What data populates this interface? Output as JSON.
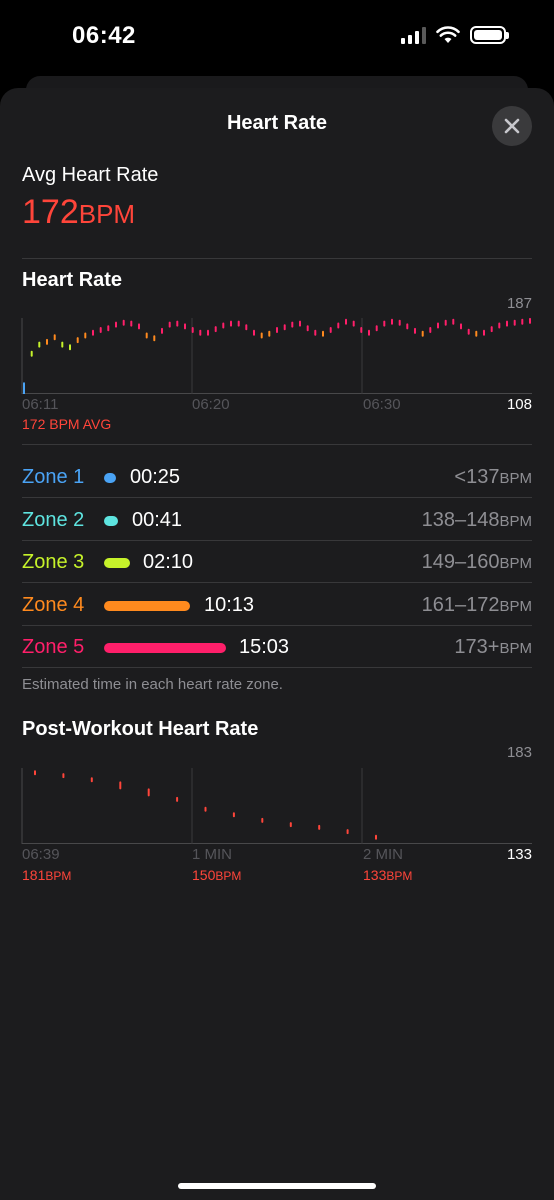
{
  "status": {
    "time": "06:42"
  },
  "sheet": {
    "title": "Heart Rate"
  },
  "avg": {
    "label": "Avg Heart Rate",
    "value": "172",
    "unit": "BPM"
  },
  "heart_rate_chart": {
    "title": "Heart Rate",
    "y_max_label": "187",
    "y_min_label": "108",
    "x_labels": [
      "06:11",
      "06:20",
      "06:30"
    ],
    "avg_label": "172 BPM AVG"
  },
  "zones": [
    {
      "name": "Zone 1",
      "time": "00:25",
      "range": "<137",
      "unit": "BPM",
      "color": "#4aa3f5"
    },
    {
      "name": "Zone 2",
      "time": "00:41",
      "range": "138–148",
      "unit": "BPM",
      "color": "#5ee4e0"
    },
    {
      "name": "Zone 3",
      "time": "02:10",
      "range": "149–160",
      "unit": "BPM",
      "color": "#c6f22a"
    },
    {
      "name": "Zone 4",
      "time": "10:13",
      "range": "161–172",
      "unit": "BPM",
      "color": "#ff8a1e"
    },
    {
      "name": "Zone 5",
      "time": "15:03",
      "range": "173+",
      "unit": "BPM",
      "color": "#ff1f6a"
    }
  ],
  "zones_note": "Estimated time in each heart rate zone.",
  "post_workout_chart": {
    "title": "Post-Workout Heart Rate",
    "y_max_label": "183",
    "y_min_label": "133",
    "x_labels": [
      "06:39",
      "1 MIN",
      "2 MIN"
    ],
    "readings": [
      {
        "value": "181",
        "unit": "BPM"
      },
      {
        "value": "150",
        "unit": "BPM"
      },
      {
        "value": "133",
        "unit": "BPM"
      }
    ]
  },
  "chart_data": [
    {
      "type": "line",
      "title": "Heart Rate",
      "ylim": [
        108,
        187
      ],
      "x_ticks": [
        "06:11",
        "06:20",
        "06:30"
      ],
      "series": [
        {
          "values": [
            111,
            150,
            160,
            163,
            168,
            160,
            157,
            165,
            170,
            173,
            176,
            178,
            182,
            184,
            183,
            180,
            170,
            167,
            175,
            182,
            183,
            180,
            176,
            173,
            173,
            177,
            181,
            183,
            183,
            179,
            173,
            170,
            172,
            176,
            179,
            182,
            183,
            178,
            173,
            172,
            176,
            181,
            185,
            183,
            176,
            173,
            178,
            183,
            185,
            184,
            180,
            175,
            172,
            176,
            181,
            184,
            185,
            180,
            174,
            172,
            173,
            177,
            181,
            183,
            184,
            185,
            186
          ]
        }
      ]
    },
    {
      "type": "scatter",
      "title": "Post-Workout Heart Rate",
      "ylim": [
        133,
        183
      ],
      "x_ticks": [
        "06:39",
        "1 MIN",
        "2 MIN"
      ],
      "series": [
        {
          "values": [
            181,
            179,
            176,
            172,
            167,
            162,
            155,
            151,
            147,
            144,
            142,
            139,
            135
          ]
        }
      ]
    }
  ]
}
